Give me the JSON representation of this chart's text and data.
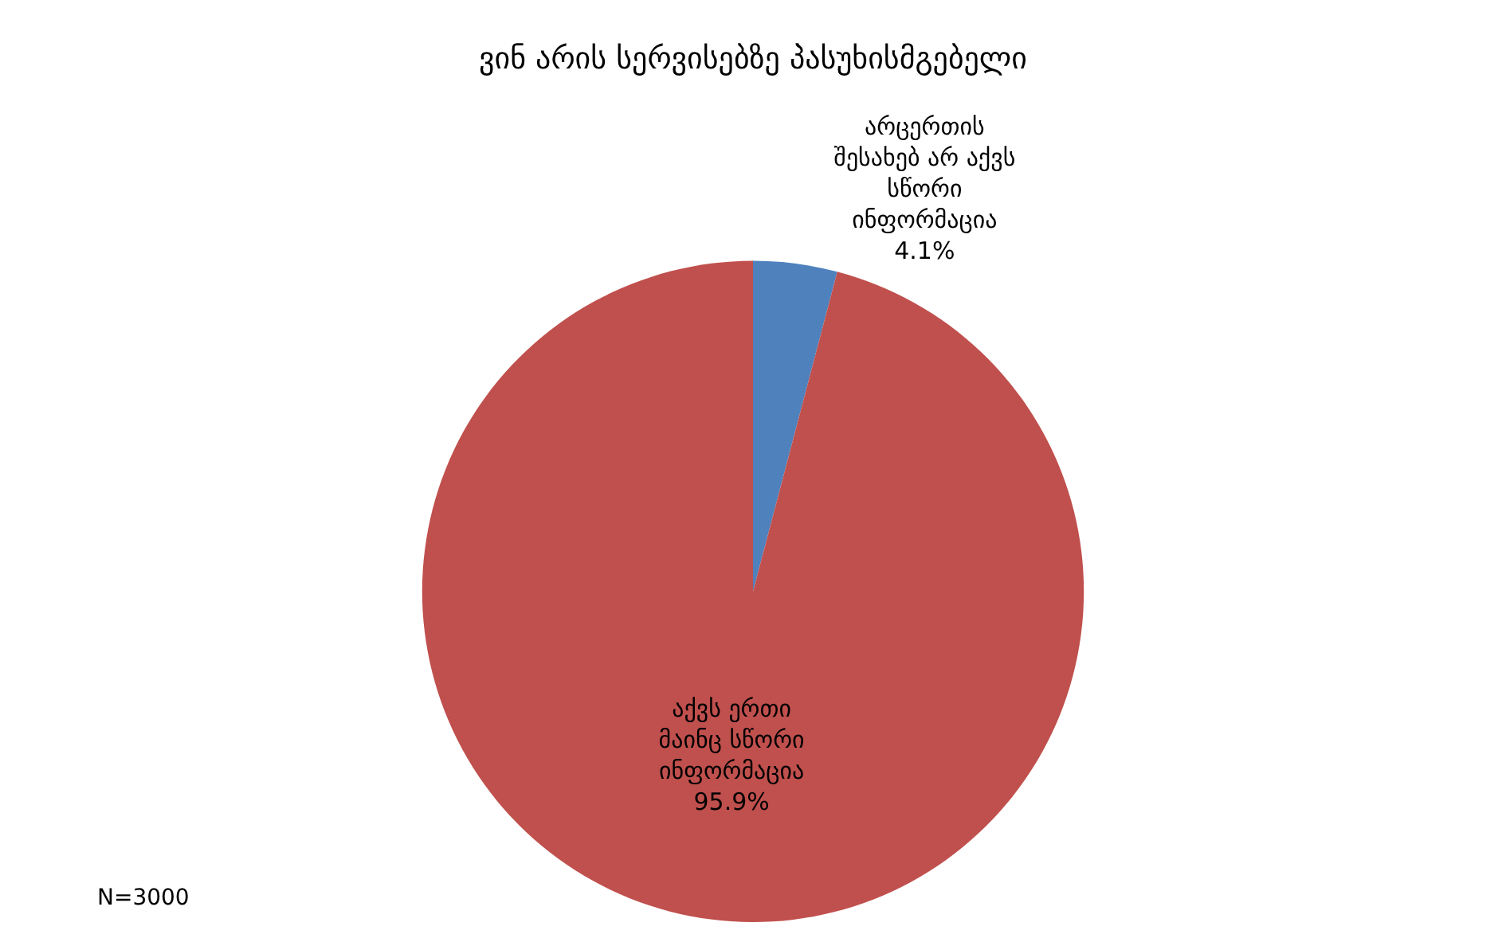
{
  "chart_data": {
    "type": "pie",
    "title": "ვინ არის სერვისებზე პასუხისმგებელი",
    "categories": [
      "არცერთის\nშესახებ არ აქვს\nსწორი\nინფორმაცია",
      "აქვს ერთი\nმაინც სწორი\nინფორმაცია"
    ],
    "values": [
      4.1,
      95.9
    ],
    "value_labels": [
      "4.1%",
      "95.9%"
    ],
    "colors": [
      "#4f81bd",
      "#c0504d"
    ],
    "annotations": [
      "N=3000"
    ],
    "legend": false
  }
}
